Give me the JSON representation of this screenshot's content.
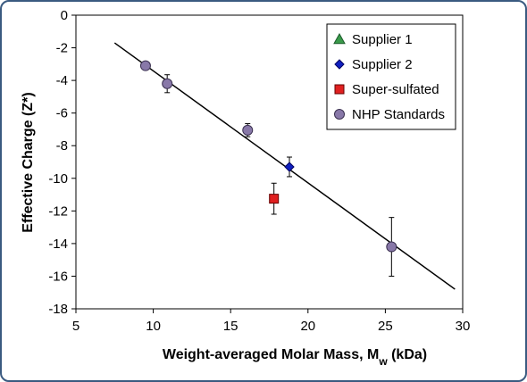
{
  "chart_data": {
    "type": "scatter",
    "xlabel_main": "Weight-averaged Molar Mass, M",
    "xlabel_sub": "w",
    "xlabel_tail": " (kDa)",
    "ylabel": "Effective Charge (Z*)",
    "xlim": [
      5,
      30
    ],
    "ylim": [
      -18,
      0
    ],
    "xticks": [
      5,
      10,
      15,
      20,
      25,
      30
    ],
    "yticks": [
      0,
      -2,
      -4,
      -6,
      -8,
      -10,
      -12,
      -14,
      -16,
      -18
    ],
    "grid": false,
    "legend_position": "top-right",
    "fit_line": {
      "x": [
        7.5,
        29.5
      ],
      "y": [
        -1.7,
        -16.8
      ],
      "color": "#000000"
    },
    "series": [
      {
        "name": "Supplier 1",
        "marker": "triangle",
        "color": "#3a9a4a",
        "points": []
      },
      {
        "name": "Supplier 2",
        "marker": "diamond",
        "color": "#1020c0",
        "points": [
          {
            "x": 18.8,
            "y": -9.3,
            "err": 0.6
          }
        ]
      },
      {
        "name": "Super-sulfated",
        "marker": "square",
        "color": "#e02020",
        "points": [
          {
            "x": 17.8,
            "y": -11.25,
            "err": 0.95
          }
        ]
      },
      {
        "name": "NHP Standards",
        "marker": "circle",
        "color": "#8878a8",
        "points": [
          {
            "x": 9.5,
            "y": -3.1,
            "err": 0.15
          },
          {
            "x": 10.9,
            "y": -4.2,
            "err": 0.55
          },
          {
            "x": 16.1,
            "y": -7.05,
            "err": 0.4
          },
          {
            "x": 25.4,
            "y": -14.2,
            "err": 1.8
          }
        ]
      }
    ]
  }
}
